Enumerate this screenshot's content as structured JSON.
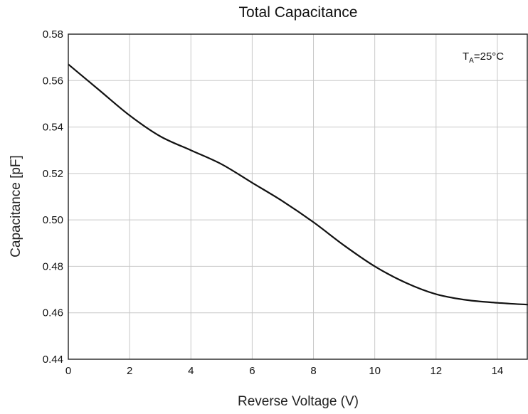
{
  "chart_data": {
    "type": "line",
    "title": "Total Capacitance",
    "xlabel": "Reverse Voltage (V)",
    "ylabel": "Capacitance [pF]",
    "xlim": [
      0,
      15
    ],
    "ylim": [
      0.44,
      0.58
    ],
    "xticks": [
      0,
      2,
      4,
      6,
      8,
      10,
      12,
      14
    ],
    "xtick_labels": [
      "0",
      "2",
      "4",
      "6",
      "8",
      "10",
      "12",
      "14"
    ],
    "yticks": [
      0.44,
      0.46,
      0.48,
      0.5,
      0.52,
      0.54,
      0.56,
      0.58
    ],
    "ytick_labels": [
      "0.44",
      "0.46",
      "0.48",
      "0.50",
      "0.52",
      "0.54",
      "0.56",
      "0.58"
    ],
    "grid": true,
    "annotation": {
      "main": "T",
      "sub": "A",
      "rest": "=25°C"
    },
    "series": [
      {
        "x": [
          0,
          1,
          2,
          3,
          4,
          5,
          6,
          7,
          8,
          9,
          10,
          11,
          12,
          13,
          14,
          15
        ],
        "y": [
          0.567,
          0.556,
          0.545,
          0.536,
          0.53,
          0.524,
          0.516,
          0.508,
          0.499,
          0.489,
          0.48,
          0.473,
          0.468,
          0.4655,
          0.4643,
          0.4635
        ]
      }
    ]
  }
}
